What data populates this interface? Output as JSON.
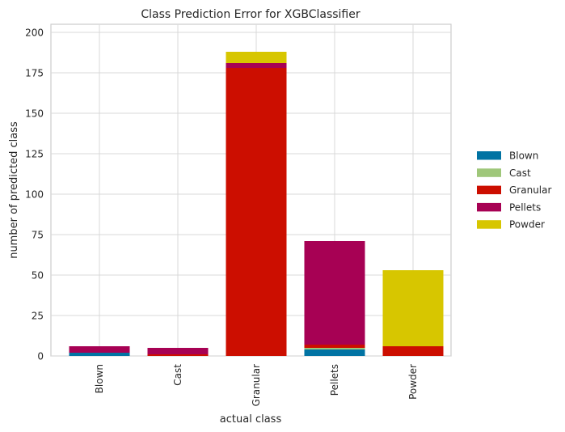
{
  "chart_data": {
    "type": "bar",
    "stacked": true,
    "title": "Class Prediction Error for XGBClassifier",
    "xlabel": "actual class",
    "ylabel": "number of predicted class",
    "categories": [
      "Blown",
      "Cast",
      "Granular",
      "Pellets",
      "Powder"
    ],
    "ylim": [
      0,
      205
    ],
    "yticks": [
      0,
      25,
      50,
      75,
      100,
      125,
      150,
      175,
      200
    ],
    "grid": true,
    "legend_position": "right",
    "series": [
      {
        "name": "Blown",
        "color": "#0173a3",
        "values": [
          2,
          0,
          0,
          4,
          0
        ]
      },
      {
        "name": "Cast",
        "color": "#9fc77a",
        "values": [
          0,
          0,
          0,
          1,
          0
        ]
      },
      {
        "name": "Granular",
        "color": "#cc0e00",
        "values": [
          0,
          1,
          178,
          2,
          6
        ]
      },
      {
        "name": "Pellets",
        "color": "#a70154",
        "values": [
          4,
          4,
          3,
          64,
          0
        ]
      },
      {
        "name": "Powder",
        "color": "#d7c600",
        "values": [
          0,
          0,
          7,
          0,
          47
        ]
      }
    ]
  }
}
